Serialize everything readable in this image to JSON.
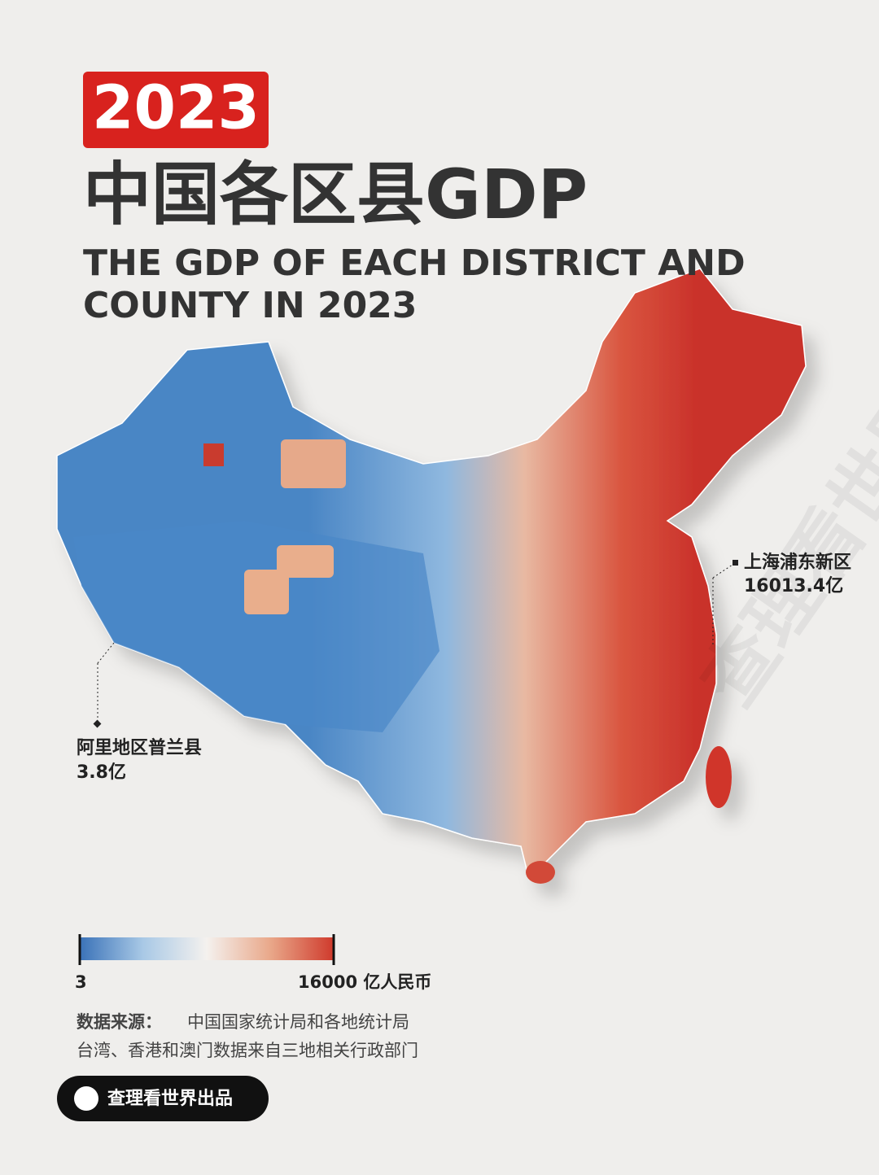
{
  "header": {
    "year": "2023",
    "title": "中国各区县GDP",
    "subtitle_lines": [
      "THE GDP OF EACH DISTRICT AND",
      "COUNTY IN 2023"
    ]
  },
  "annotations": [
    {
      "region": "上海浦东新区",
      "value": 16013.4,
      "value_label": "16013.4亿"
    },
    {
      "region": "阿里地区普兰县",
      "value": 3.8,
      "value_label": "3.8亿"
    }
  ],
  "legend": {
    "min": 3,
    "max": {
      "value": 16000,
      "label": "16000 亿人民币"
    },
    "colors": [
      "#3a72b8",
      "#a9c9e6",
      "#f4f1ee",
      "#e9a88a",
      "#cf3a2c"
    ]
  },
  "footer": {
    "source_label": "数据来源：",
    "source_lines": [
      "中国国家统计局和各地统计局",
      "台湾、香港和澳门数据来自三地相关行政部门"
    ],
    "brand": "查理看世界出品"
  }
}
